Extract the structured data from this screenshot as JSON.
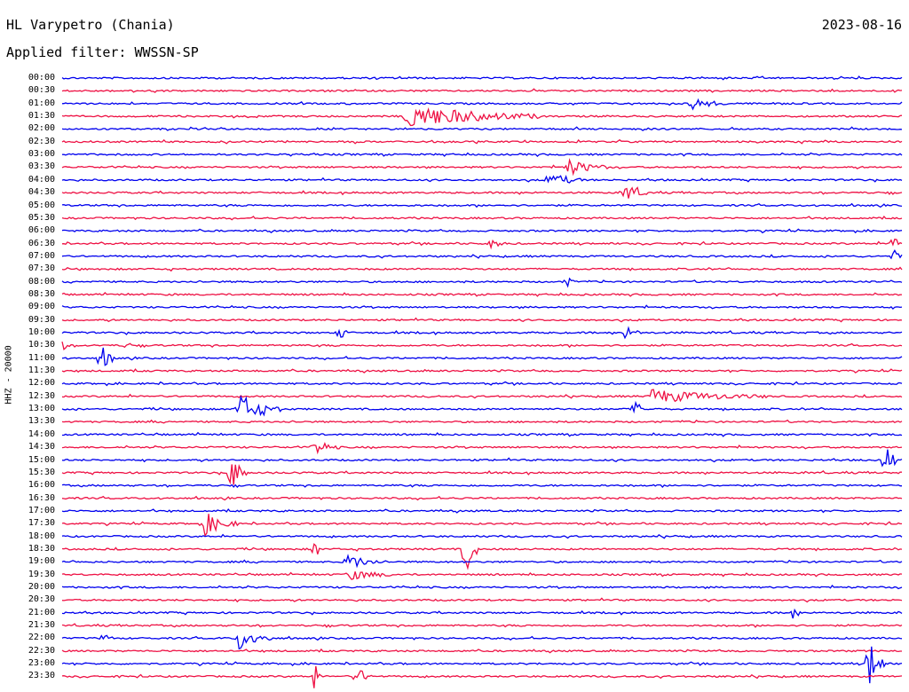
{
  "header": {
    "station": "HL Varypetro (Chania)",
    "date": "2023-08-16",
    "filter": "Applied filter: WWSSN-SP"
  },
  "channel_label": "HHZ - 20000",
  "colors": {
    "even": "#0000ee",
    "odd": "#ee1144"
  },
  "chart_data": {
    "type": "line",
    "title": "HL Varypetro (Chania)",
    "subtitle": "Applied filter: WWSSN-SP",
    "ylabel": "HHZ - 20000",
    "xlabel": "",
    "rows": [
      "00:00",
      "00:30",
      "01:00",
      "01:30",
      "02:00",
      "02:30",
      "03:00",
      "03:30",
      "04:00",
      "04:30",
      "05:00",
      "05:30",
      "06:00",
      "06:30",
      "07:00",
      "07:30",
      "08:00",
      "08:30",
      "09:00",
      "09:30",
      "10:00",
      "10:30",
      "11:00",
      "11:30",
      "12:00",
      "12:30",
      "13:00",
      "13:30",
      "14:00",
      "14:30",
      "15:00",
      "15:30",
      "16:00",
      "16:30",
      "17:00",
      "17:30",
      "18:00",
      "18:30",
      "19:00",
      "19:30",
      "20:00",
      "20:30",
      "21:00",
      "21:30",
      "22:00",
      "22:30",
      "23:00",
      "23:30"
    ],
    "events": [
      {
        "row": 2,
        "t": 0.75,
        "amp": 7,
        "dur": 0.04
      },
      {
        "row": 3,
        "t": 0.41,
        "amp": 14,
        "dur": 0.16
      },
      {
        "row": 7,
        "t": 0.6,
        "amp": 10,
        "dur": 0.05
      },
      {
        "row": 8,
        "t": 0.58,
        "amp": 9,
        "dur": 0.04
      },
      {
        "row": 9,
        "t": 0.67,
        "amp": 12,
        "dur": 0.03
      },
      {
        "row": 13,
        "t": 0.99,
        "amp": 18,
        "dur": 0.01
      },
      {
        "row": 13,
        "t": 0.51,
        "amp": 5,
        "dur": 0.02
      },
      {
        "row": 14,
        "t": 0.99,
        "amp": 8,
        "dur": 0.01
      },
      {
        "row": 16,
        "t": 0.6,
        "amp": 7,
        "dur": 0.01
      },
      {
        "row": 20,
        "t": 0.33,
        "amp": 14,
        "dur": 0.01
      },
      {
        "row": 20,
        "t": 0.67,
        "amp": 8,
        "dur": 0.02
      },
      {
        "row": 21,
        "t": 0.0,
        "amp": 6,
        "dur": 0.01
      },
      {
        "row": 21,
        "t": 0.075,
        "amp": 6,
        "dur": 0.01
      },
      {
        "row": 22,
        "t": 0.045,
        "amp": 18,
        "dur": 0.02
      },
      {
        "row": 25,
        "t": 0.7,
        "amp": 8,
        "dur": 0.14
      },
      {
        "row": 26,
        "t": 0.21,
        "amp": 18,
        "dur": 0.05
      },
      {
        "row": 26,
        "t": 0.68,
        "amp": 10,
        "dur": 0.02
      },
      {
        "row": 29,
        "t": 0.3,
        "amp": 9,
        "dur": 0.03
      },
      {
        "row": 30,
        "t": 0.98,
        "amp": 22,
        "dur": 0.015
      },
      {
        "row": 31,
        "t": 0.2,
        "amp": 24,
        "dur": 0.02
      },
      {
        "row": 35,
        "t": 0.17,
        "amp": 13,
        "dur": 0.04
      },
      {
        "row": 37,
        "t": 0.48,
        "amp": 40,
        "dur": 0.015
      },
      {
        "row": 37,
        "t": 0.3,
        "amp": 14,
        "dur": 0.01
      },
      {
        "row": 38,
        "t": 0.34,
        "amp": 9,
        "dur": 0.04
      },
      {
        "row": 39,
        "t": 0.34,
        "amp": 6,
        "dur": 0.06
      },
      {
        "row": 42,
        "t": 0.87,
        "amp": 7,
        "dur": 0.01
      },
      {
        "row": 44,
        "t": 0.21,
        "amp": 14,
        "dur": 0.04
      },
      {
        "row": 44,
        "t": 0.05,
        "amp": 7,
        "dur": 0.01
      },
      {
        "row": 46,
        "t": 0.96,
        "amp": 38,
        "dur": 0.02
      },
      {
        "row": 47,
        "t": 0.3,
        "amp": 16,
        "dur": 0.01
      },
      {
        "row": 47,
        "t": 0.35,
        "amp": 12,
        "dur": 0.02
      }
    ]
  }
}
